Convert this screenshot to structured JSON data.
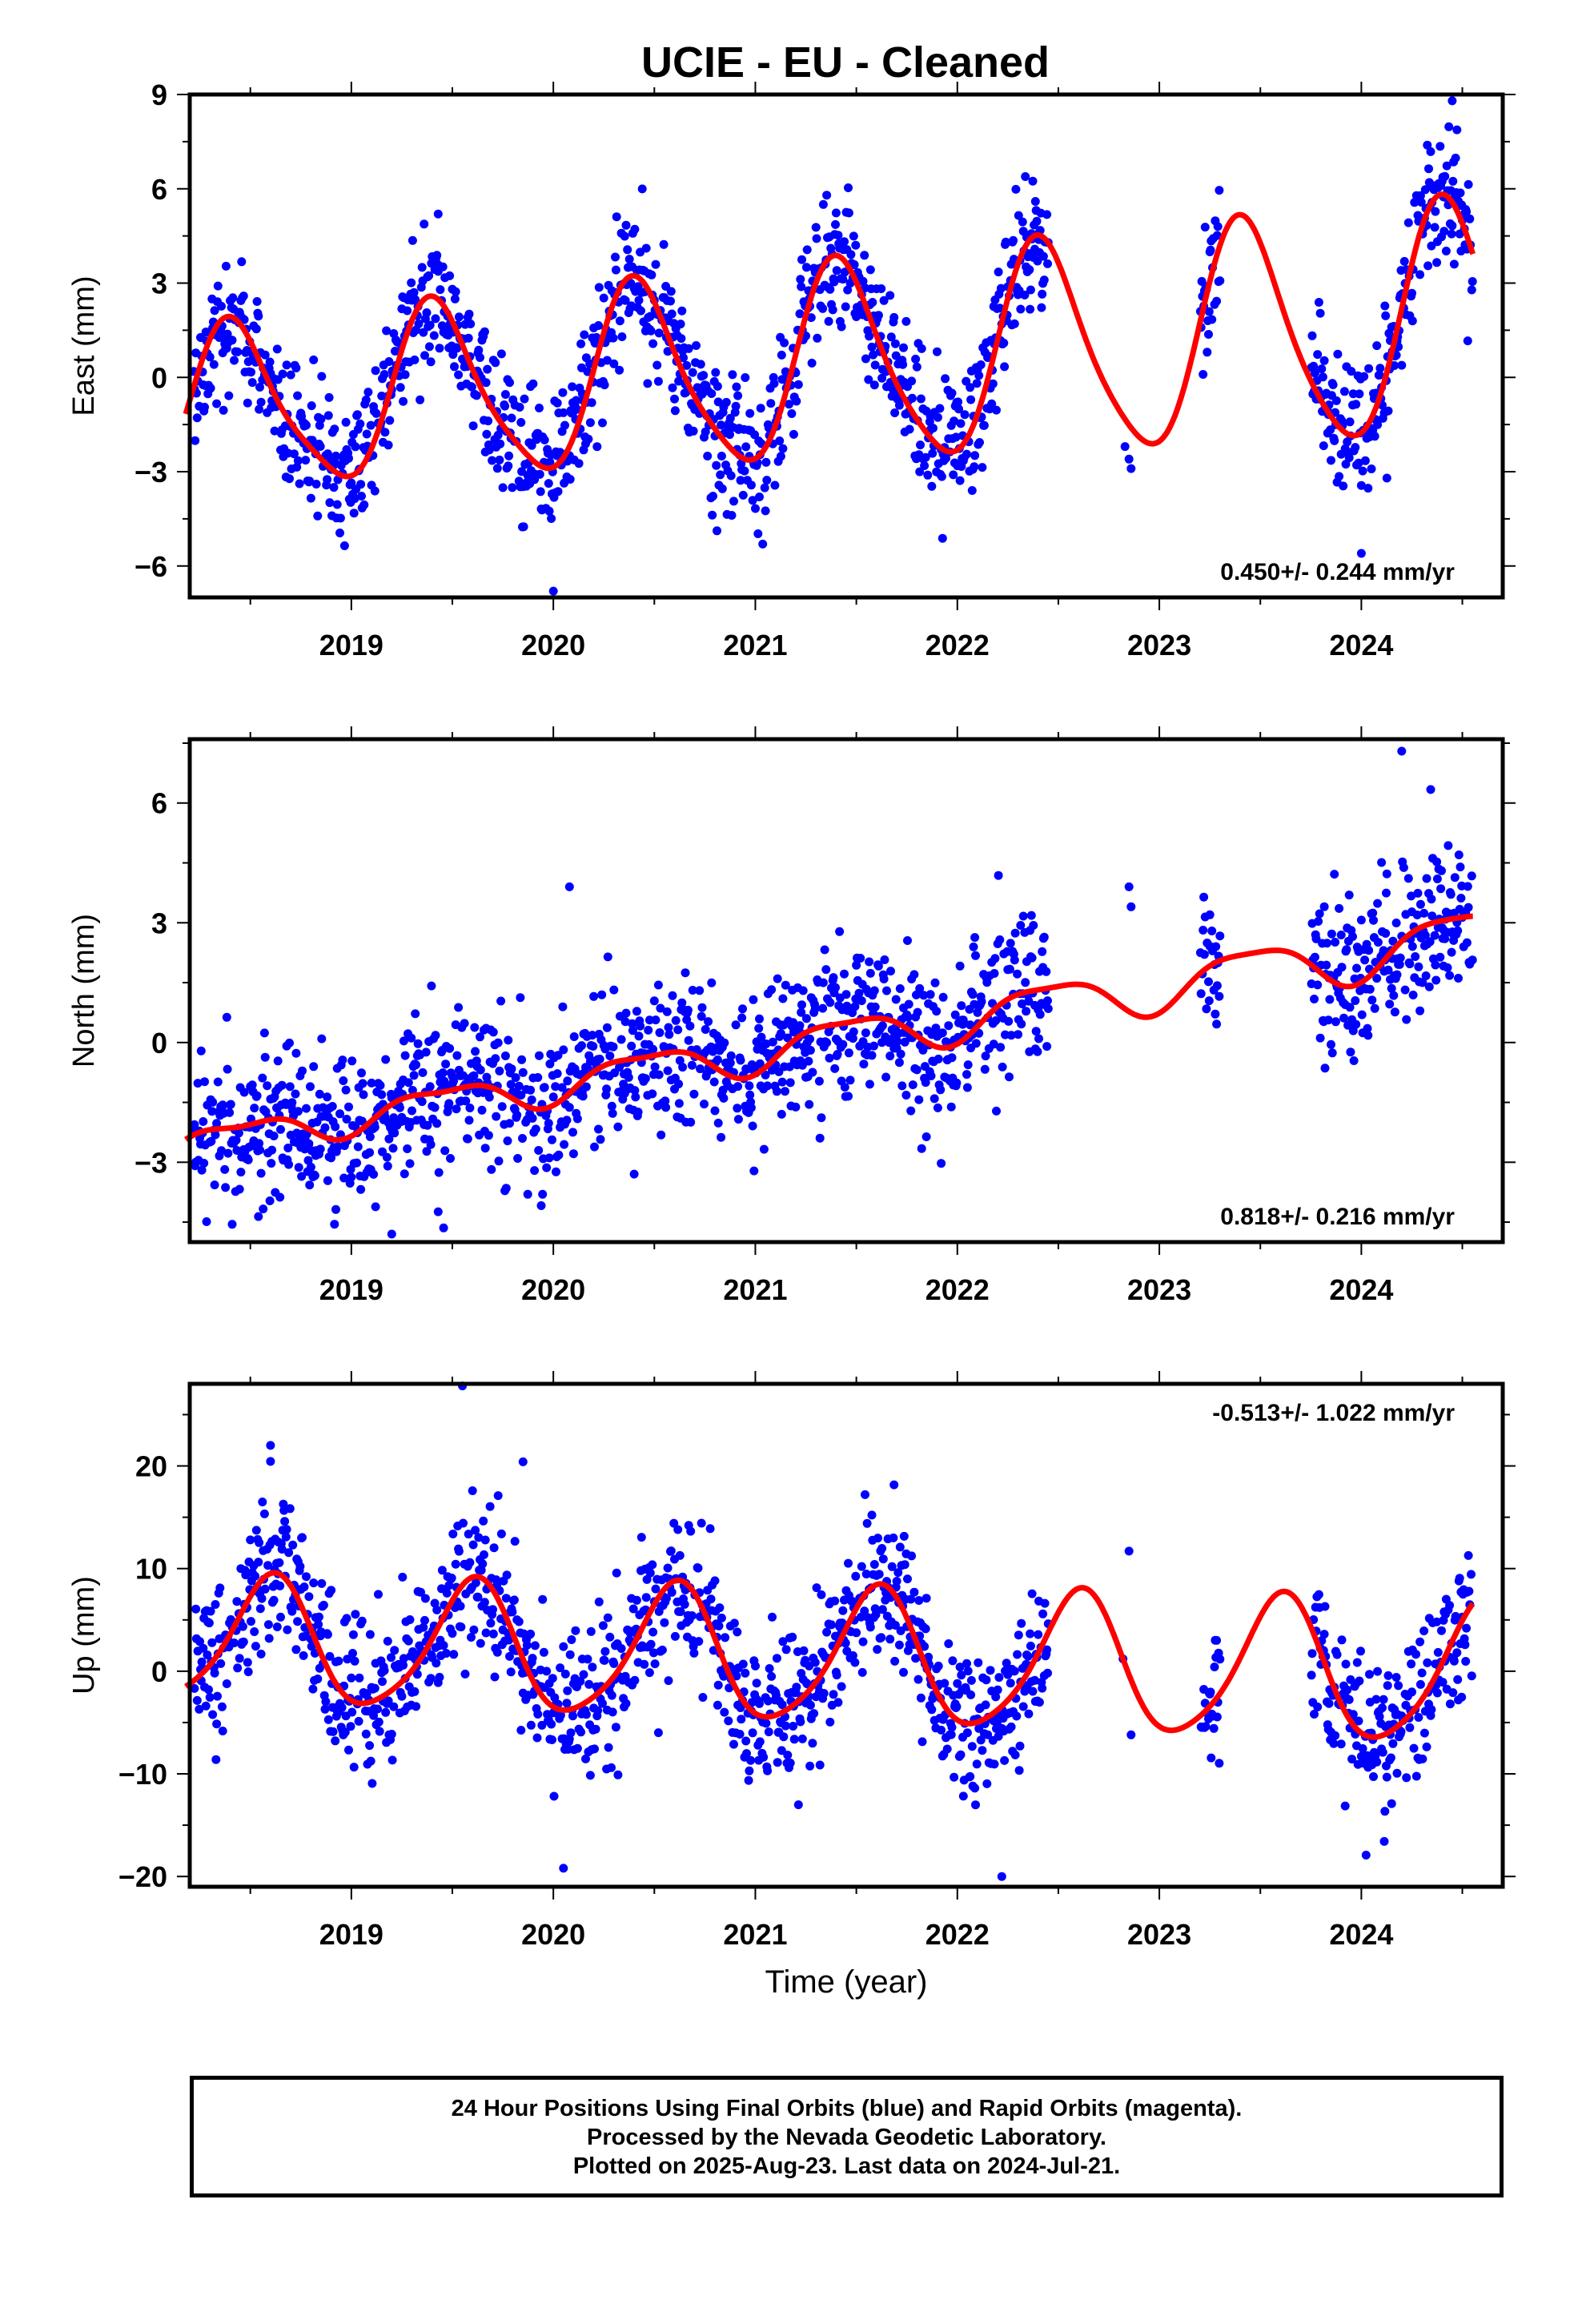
{
  "title": "UCIE  - EU - Cleaned",
  "xlabel": "Time (year)",
  "footer": {
    "line1": "24 Hour Positions Using Final Orbits (blue) and Rapid Orbits (magenta).",
    "line2": "Processed by the Nevada Geodetic Laboratory.",
    "line3": "Plotted on 2025-Aug-23. Last data on 2024-Jul-21."
  },
  "colors": {
    "points": "#0000ff",
    "fit": "#ff0000",
    "frame": "#000000"
  },
  "chart_data": [
    {
      "type": "scatter",
      "ylabel": "East (mm)",
      "rate_label": "0.450+/- 0.244 mm/yr",
      "rate_position": "bottom-right",
      "xlim": [
        2018.2,
        2024.7
      ],
      "ylim": [
        -7,
        9
      ],
      "x_ticks": [
        2019,
        2020,
        2021,
        2022,
        2023,
        2024
      ],
      "y_ticks": [
        -6,
        -3,
        0,
        3,
        6,
        9
      ],
      "model": {
        "intercept": 0.4,
        "rate": 0.45,
        "t_ref": 2021.4,
        "annual_amp": 3.1,
        "annual_amp_growth": 0.2,
        "annual_peak": 0.42,
        "semiannual_amp": 0.5,
        "semiannual_peak": 0.35,
        "scatter": 1.1
      },
      "gaps": [
        [
          2022.45,
          2023.2
        ],
        [
          2023.3,
          2023.75
        ]
      ],
      "sparse_obs": [
        [
          2022.85,
          -2.6
        ],
        [
          2022.86,
          -2.9
        ],
        [
          2022.83,
          -2.2
        ]
      ],
      "outliers": [
        [
          2024.45,
          8.8
        ],
        [
          2024.0,
          -5.6
        ],
        [
          2019.43,
          5.2
        ],
        [
          2020.0,
          -6.8
        ]
      ]
    },
    {
      "type": "scatter",
      "ylabel": "North (mm)",
      "rate_label": "0.818+/- 0.216 mm/yr",
      "rate_position": "bottom-right",
      "xlim": [
        2018.2,
        2024.7
      ],
      "ylim": [
        -5,
        7.6
      ],
      "x_ticks": [
        2019,
        2020,
        2021,
        2022,
        2023,
        2024
      ],
      "y_ticks": [
        -3,
        0,
        3,
        6
      ],
      "model": {
        "intercept": 0.1,
        "rate": 0.818,
        "t_ref": 2021.4,
        "annual_amp": 0.5,
        "annual_amp_growth": 0.05,
        "annual_peak": 0.45,
        "semiannual_amp": 0.15,
        "semiannual_peak": 0.2,
        "scatter": 0.95
      },
      "gaps": [
        [
          2022.45,
          2023.2
        ],
        [
          2023.3,
          2023.75
        ]
      ],
      "sparse_obs": [
        [
          2022.85,
          3.9
        ],
        [
          2022.86,
          3.4
        ],
        [
          2023.25,
          3.2
        ]
      ],
      "outliers": [
        [
          2024.2,
          7.3
        ],
        [
          2020.08,
          3.9
        ],
        [
          2019.2,
          -4.8
        ]
      ]
    },
    {
      "type": "scatter",
      "ylabel": "Up (mm)",
      "rate_label": "-0.513+/- 1.022 mm/yr",
      "rate_position": "top-right",
      "xlim": [
        2018.2,
        2024.7
      ],
      "ylim": [
        -21,
        28
      ],
      "x_ticks": [
        2019,
        2020,
        2021,
        2022,
        2023,
        2024
      ],
      "y_ticks": [
        -20,
        -10,
        0,
        10,
        20
      ],
      "model": {
        "intercept": 1.2,
        "rate": -0.513,
        "t_ref": 2021.4,
        "annual_amp": 6.5,
        "annual_amp_growth": 0.15,
        "annual_peak": 0.6,
        "semiannual_amp": 1.0,
        "semiannual_peak": 0.15,
        "scatter": 3.6
      },
      "gaps": [
        [
          2022.45,
          2023.2
        ],
        [
          2023.3,
          2023.75
        ]
      ],
      "sparse_obs": [
        [
          2022.85,
          11.7
        ],
        [
          2022.86,
          -6.2
        ],
        [
          2022.82,
          1.2
        ]
      ],
      "outliers": [
        [
          2019.55,
          27.8
        ],
        [
          2018.6,
          22.0
        ],
        [
          2019.85,
          20.4
        ],
        [
          2022.22,
          -20.0
        ],
        [
          2020.05,
          -19.2
        ]
      ]
    }
  ]
}
